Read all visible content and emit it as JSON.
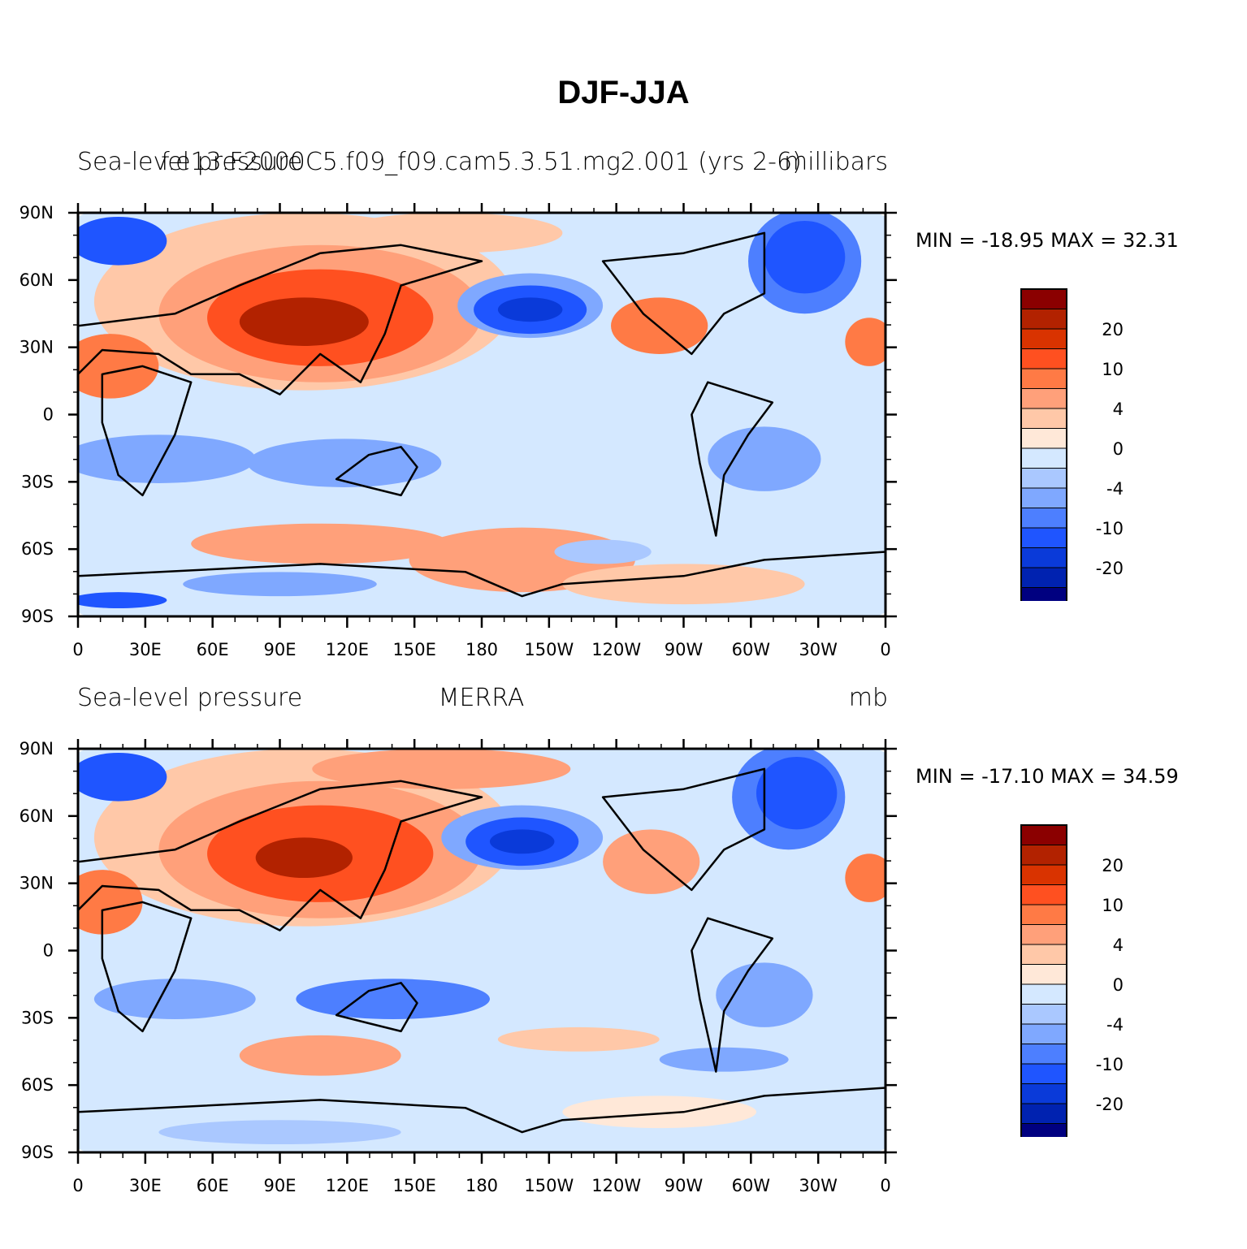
{
  "title": "DJF-JJA",
  "panels": [
    {
      "left_title": "Sea-level pressure",
      "center_title": "f.e13.F2000C5.f09_f09.cam5.3.51.mg2.001 (yrs 2-6)",
      "right_title": "millibars",
      "min_max": "MIN = -18.95 MAX =   32.31"
    },
    {
      "left_title": "Sea-level pressure",
      "center_title": "MERRA",
      "right_title": "mb",
      "min_max": "MIN = -17.10 MAX =   34.59"
    }
  ],
  "axes": {
    "y_ticks": [
      "90N",
      "60N",
      "30N",
      "0",
      "30S",
      "60S",
      "90S"
    ],
    "x_ticks": [
      "0",
      "30E",
      "60E",
      "90E",
      "120E",
      "150E",
      "180",
      "150W",
      "120W",
      "90W",
      "60W",
      "30W",
      "0"
    ]
  },
  "colorbar": {
    "labels": [
      "20",
      "10",
      "4",
      "0",
      "-4",
      "-10",
      "-20"
    ],
    "colors": [
      "#8b0000",
      "#b22200",
      "#d93300",
      "#ff5020",
      "#ff7a45",
      "#ffa07a",
      "#ffc8a8",
      "#ffe8d8",
      "#d4e8ff",
      "#aac8ff",
      "#7fa8ff",
      "#4d7fff",
      "#1f55ff",
      "#0a3ad9",
      "#0022b0",
      "#000080"
    ]
  }
}
